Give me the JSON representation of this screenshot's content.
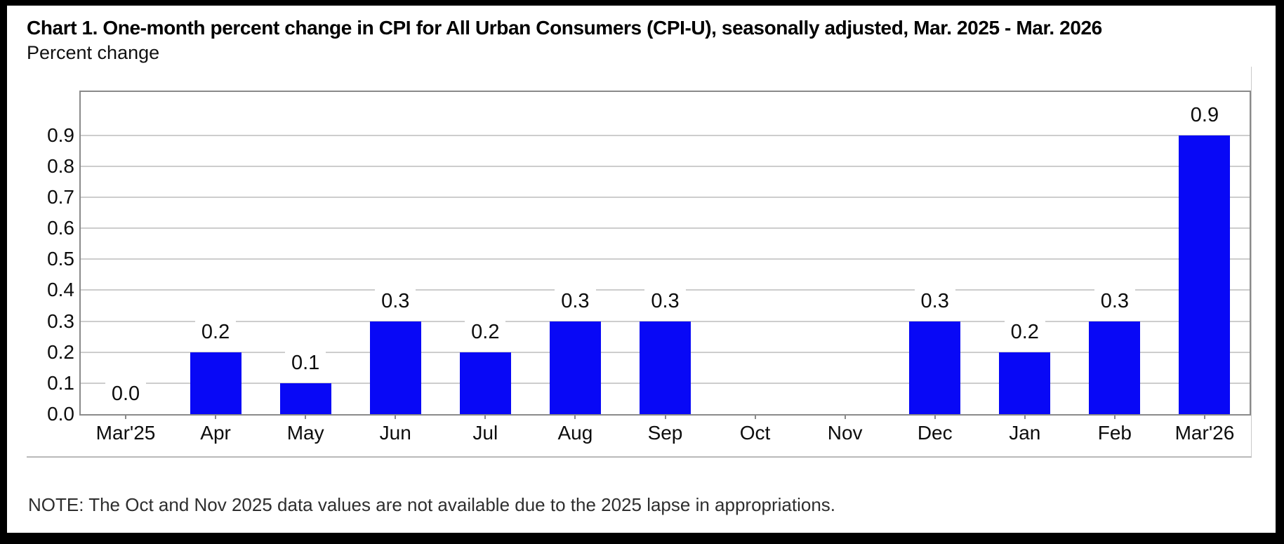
{
  "header": {
    "title": "Chart 1. One-month percent change in CPI for All Urban Consumers (CPI-U), seasonally adjusted, Mar. 2025 - Mar. 2026",
    "subtitle": "Percent change"
  },
  "chart_data": {
    "type": "bar",
    "title": "Chart 1. One-month percent change in CPI for All Urban Consumers (CPI-U), seasonally adjusted, Mar. 2025 - Mar. 2026",
    "ylabel": "Percent change",
    "categories": [
      "Mar'25",
      "Apr",
      "May",
      "Jun",
      "Jul",
      "Aug",
      "Sep",
      "Oct",
      "Nov",
      "Dec",
      "Jan",
      "Feb",
      "Mar'26"
    ],
    "values": [
      0.0,
      0.2,
      0.1,
      0.3,
      0.2,
      0.3,
      0.3,
      null,
      null,
      0.3,
      0.2,
      0.3,
      0.9
    ],
    "value_labels": [
      "0.0",
      "0.2",
      "0.1",
      "0.3",
      "0.2",
      "0.3",
      "0.3",
      null,
      null,
      "0.3",
      "0.2",
      "0.3",
      "0.9"
    ],
    "missing_categories": [
      "Oct",
      "Nov"
    ],
    "y_ticks": [
      0.0,
      0.1,
      0.2,
      0.3,
      0.4,
      0.5,
      0.6,
      0.7,
      0.8,
      0.9
    ],
    "ylim": [
      0,
      1.04
    ],
    "grid": true,
    "legend": "none",
    "bar_color": "#0808F6"
  },
  "note": {
    "text": "NOTE: The Oct and Nov 2025 data values are not available due to the 2025 lapse in appropriations."
  }
}
